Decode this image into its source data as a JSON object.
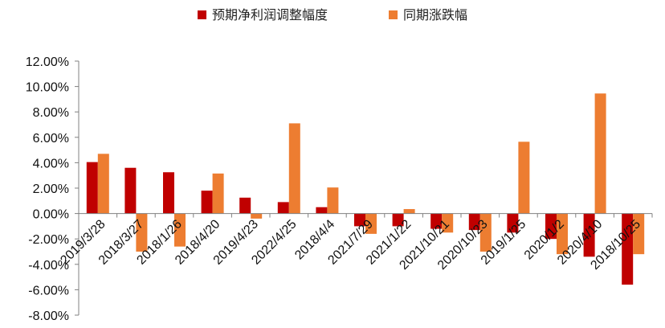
{
  "chart_data": {
    "type": "bar",
    "title": "",
    "xlabel": "",
    "ylabel": "",
    "categories": [
      "2019/3/28",
      "2018/3/27",
      "2018/1/26",
      "2018/4/20",
      "2019/4/23",
      "2022/4/25",
      "2018/4/4",
      "2021/7/29",
      "2021/1/22",
      "2021/10/21",
      "2020/10/23",
      "2019/1/25",
      "2020/1/2",
      "2020/4/10",
      "2018/10/25"
    ],
    "series": [
      {
        "name": "预期净利润调整幅度",
        "color": "#C00000",
        "values": [
          4.05,
          3.6,
          3.25,
          1.8,
          1.25,
          0.9,
          0.5,
          -1.0,
          -1.0,
          -1.2,
          -1.3,
          -1.5,
          -2.0,
          -3.4,
          -5.6
        ]
      },
      {
        "name": "同期涨跌幅",
        "color": "#ED7D31",
        "values": [
          4.7,
          -3.0,
          -2.6,
          3.15,
          -0.4,
          7.1,
          2.05,
          -1.6,
          0.35,
          -1.5,
          -3.0,
          5.65,
          -3.2,
          9.45,
          -3.2
        ]
      }
    ],
    "ylim": [
      -8,
      12
    ],
    "ytick_step": 2,
    "ytick_labels": [
      "12.00%",
      "10.00%",
      "8.00%",
      "6.00%",
      "4.00%",
      "2.00%",
      "0.00%",
      "-2.00%",
      "-4.00%",
      "-6.00%",
      "-8.00%"
    ],
    "legend_position": "top-center",
    "grid": false
  }
}
